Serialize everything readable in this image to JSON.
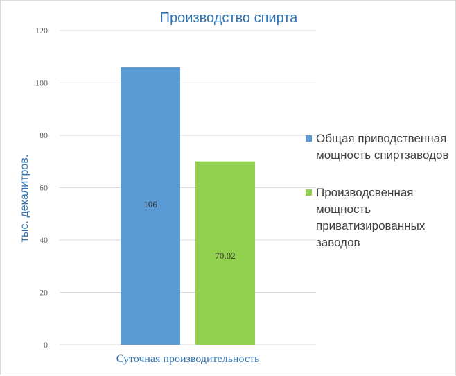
{
  "chart_data": {
    "type": "bar",
    "title": "Производство спирта",
    "xlabel": "Суточная производительность",
    "ylabel": "тыс. декалитров.",
    "ylim": [
      0,
      120
    ],
    "yticks": [
      0,
      20,
      40,
      60,
      80,
      100,
      120
    ],
    "grid": true,
    "legend_position": "right",
    "categories": [
      "Суточная производительность"
    ],
    "series": [
      {
        "name": "Общая приводственная мощность спиртзаводов",
        "values": [
          106
        ],
        "label": "106",
        "color": "#5b9bd5"
      },
      {
        "name": "Производсвенная мощность приватизированных заводов",
        "values": [
          70.02
        ],
        "label": "70,02",
        "color": "#92d050"
      }
    ]
  }
}
